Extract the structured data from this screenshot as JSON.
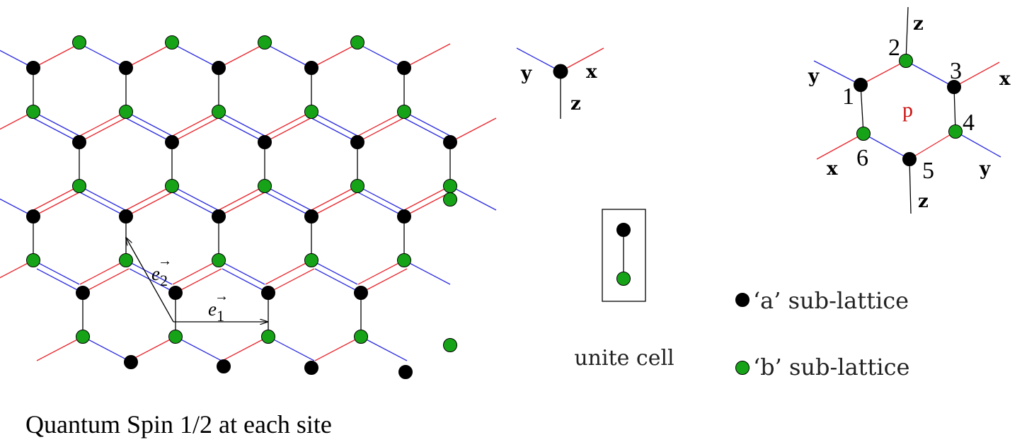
{
  "colors": {
    "x_bond": "#e8232a",
    "y_bond": "#2a2ae0",
    "z_bond": "#000000",
    "site_a": "#000000",
    "site_b": "#17a317",
    "plaquette_label": "#cc1111"
  },
  "lattice": {
    "caption": "Quantum Spin 1/2 at each site",
    "vector_e1_base": "e",
    "vector_e1_sub": "1",
    "vector_e2_base": "e",
    "vector_e2_sub": "2"
  },
  "axes_legend": {
    "x": "x",
    "y": "y",
    "z": "z"
  },
  "plaquette": {
    "label": "p",
    "site_numbers": [
      "1",
      "2",
      "3",
      "4",
      "5",
      "6"
    ],
    "bond_labels": [
      "z",
      "y",
      "x",
      "x",
      "y",
      "z"
    ]
  },
  "unit_cell": {
    "label": "unite cell"
  },
  "legend": {
    "a_label": "‘a’ sub-lattice",
    "b_label": "‘b’ sub-lattice"
  }
}
